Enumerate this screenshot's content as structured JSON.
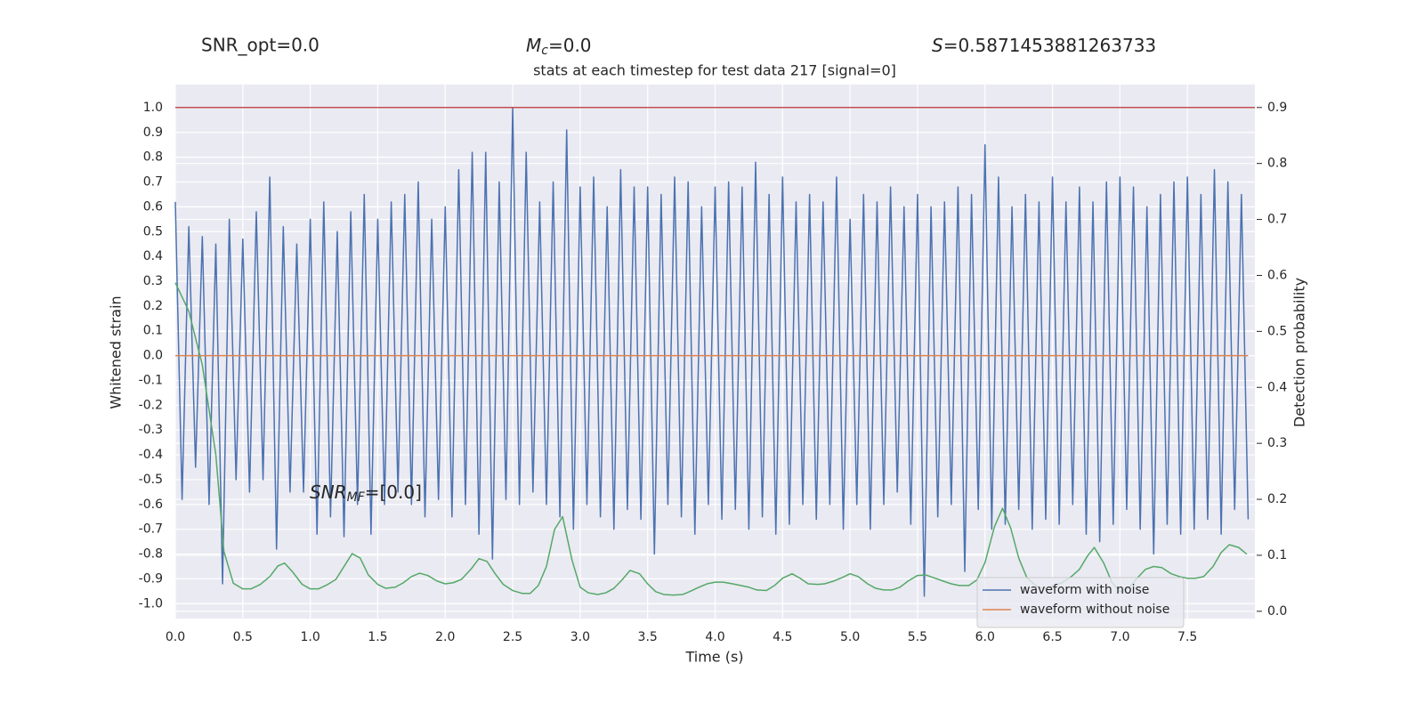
{
  "chart_data": {
    "type": "line",
    "title": "stats at each timestep for test data 217 [signal=0]",
    "header_texts": {
      "snr_opt": "SNR_opt=0.0",
      "mc": [
        "M",
        "c",
        "=0.0"
      ],
      "s": [
        "S",
        "=0.5871453881263733"
      ]
    },
    "annotation": [
      "SNR",
      "MF",
      "=[0.0]"
    ],
    "x_label": "Time (s)",
    "y_label": "Whitened strain",
    "y2_label": "Detection probability",
    "xlim": [
      0,
      8.0
    ],
    "ylim": [
      -1.06,
      1.093
    ],
    "y2lim": [
      -0.013,
      0.941
    ],
    "xticks": [
      {
        "value": 0,
        "label": "0.0"
      },
      0.5,
      {
        "value": 1,
        "label": "1.0"
      },
      1.5,
      {
        "value": 2,
        "label": "2.0"
      },
      2.5,
      {
        "value": 3,
        "label": "3.0"
      },
      3.5,
      {
        "value": 4,
        "label": "4.0"
      },
      4.5,
      {
        "value": 5,
        "label": "5.0"
      },
      5.5,
      {
        "value": 6,
        "label": "6.0"
      },
      6.5,
      {
        "value": 7,
        "label": "7.0"
      },
      7.5
    ],
    "yticks": [
      {
        "value": -1,
        "label": "-1.0"
      },
      -0.9,
      -0.8,
      -0.7,
      -0.6,
      -0.5,
      -0.4,
      -0.3,
      -0.2,
      -0.1,
      {
        "value": 0,
        "label": "0.0"
      },
      0.1,
      0.2,
      0.3,
      0.4,
      0.5,
      0.6,
      0.7,
      0.8,
      0.9,
      {
        "value": 1,
        "label": "1.0"
      }
    ],
    "y2ticks": [
      {
        "value": 0,
        "label": "0.0"
      },
      0.1,
      0.2,
      0.3,
      0.4,
      0.5,
      0.6,
      0.7,
      0.8,
      0.9
    ],
    "grid": true,
    "legend": "lower right",
    "hline": {
      "value": 0.9,
      "axis": "y2",
      "color": "#c44e52"
    },
    "series": [
      {
        "name": "waveform with noise",
        "color": "#4c72b0",
        "x": [
          0,
          0.05,
          0.1,
          0.15,
          0.2,
          0.25,
          0.3,
          0.35,
          0.4,
          0.45,
          0.5,
          0.55,
          0.6,
          0.65,
          0.7,
          0.75,
          0.8,
          0.85,
          0.9,
          0.95,
          1,
          1.05,
          1.1,
          1.15,
          1.2,
          1.25,
          1.3,
          1.35,
          1.4,
          1.45,
          1.5,
          1.55,
          1.6,
          1.65,
          1.7,
          1.75,
          1.8,
          1.85,
          1.9,
          1.95,
          2,
          2.05,
          2.1,
          2.15,
          2.2,
          2.25,
          2.3,
          2.35,
          2.4,
          2.45,
          2.5,
          2.55,
          2.6,
          2.65,
          2.7,
          2.75,
          2.8,
          2.85,
          2.9,
          2.95,
          3,
          3.05,
          3.1,
          3.15,
          3.2,
          3.25,
          3.3,
          3.35,
          3.4,
          3.45,
          3.5,
          3.55,
          3.6,
          3.65,
          3.7,
          3.75,
          3.8,
          3.85,
          3.9,
          3.95,
          4,
          4.05,
          4.1,
          4.15,
          4.2,
          4.25,
          4.3,
          4.35,
          4.4,
          4.45,
          4.5,
          4.55,
          4.6,
          4.65,
          4.7,
          4.75,
          4.8,
          4.85,
          4.9,
          4.95,
          5,
          5.05,
          5.1,
          5.15,
          5.2,
          5.25,
          5.3,
          5.35,
          5.4,
          5.45,
          5.5,
          5.55,
          5.6,
          5.65,
          5.7,
          5.75,
          5.8,
          5.85,
          5.9,
          5.95,
          6,
          6.05,
          6.1,
          6.15,
          6.2,
          6.25,
          6.3,
          6.35,
          6.4,
          6.45,
          6.5,
          6.55,
          6.6,
          6.65,
          6.7,
          6.75,
          6.8,
          6.85,
          6.9,
          6.95,
          7,
          7.05,
          7.1,
          7.15,
          7.2,
          7.25,
          7.3,
          7.35,
          7.4,
          7.45,
          7.5,
          7.55,
          7.6,
          7.65,
          7.7,
          7.75,
          7.8,
          7.85,
          7.9,
          7.95
        ],
        "values": [
          0.62,
          -0.58,
          0.52,
          -0.45,
          0.48,
          -0.6,
          0.45,
          -0.92,
          0.55,
          -0.5,
          0.47,
          -0.55,
          0.58,
          -0.5,
          0.72,
          -0.78,
          0.52,
          -0.55,
          0.45,
          -0.55,
          0.55,
          -0.72,
          0.62,
          -0.65,
          0.5,
          -0.73,
          0.58,
          -0.6,
          0.65,
          -0.72,
          0.55,
          -0.6,
          0.62,
          -0.55,
          0.65,
          -0.6,
          0.7,
          -0.65,
          0.55,
          -0.58,
          0.6,
          -0.65,
          0.75,
          -0.6,
          0.82,
          -0.72,
          0.82,
          -0.82,
          0.7,
          -0.58,
          1.0,
          -0.6,
          0.82,
          -0.55,
          0.62,
          -0.6,
          0.7,
          -0.65,
          0.91,
          -0.7,
          0.68,
          -0.6,
          0.72,
          -0.65,
          0.6,
          -0.7,
          0.75,
          -0.62,
          0.68,
          -0.66,
          0.68,
          -0.8,
          0.65,
          -0.6,
          0.72,
          -0.65,
          0.7,
          -0.72,
          0.6,
          -0.6,
          0.68,
          -0.66,
          0.7,
          -0.62,
          0.68,
          -0.7,
          0.78,
          -0.65,
          0.65,
          -0.72,
          0.72,
          -0.68,
          0.62,
          -0.6,
          0.65,
          -0.66,
          0.62,
          -0.6,
          0.72,
          -0.7,
          0.55,
          -0.6,
          0.65,
          -0.7,
          0.62,
          -0.6,
          0.68,
          -0.55,
          0.6,
          -0.68,
          0.65,
          -0.97,
          0.6,
          -0.65,
          0.62,
          -0.6,
          0.68,
          -0.87,
          0.65,
          -0.62,
          0.85,
          -0.7,
          0.72,
          -0.68,
          0.6,
          -0.62,
          0.65,
          -0.7,
          0.62,
          -0.66,
          0.72,
          -0.68,
          0.62,
          -0.6,
          0.68,
          -0.72,
          0.62,
          -0.75,
          0.7,
          -0.68,
          0.72,
          -0.62,
          0.68,
          -0.7,
          0.6,
          -0.8,
          0.65,
          -0.68,
          0.7,
          -0.72,
          0.72,
          -0.7,
          0.65,
          -0.66,
          0.75,
          -0.72,
          0.7,
          -0.62,
          0.65,
          -0.66
        ]
      },
      {
        "name": "waveform without noise",
        "color": "#dd8452",
        "x": [
          0,
          7.95
        ],
        "values": [
          0,
          0
        ]
      },
      {
        "color": "#55a868",
        "axis": "y2",
        "x": [
          0,
          0.1,
          0.2,
          0.3,
          0.36,
          0.43,
          0.5,
          0.56,
          0.63,
          0.7,
          0.76,
          0.81,
          0.87,
          0.94,
          1,
          1.06,
          1.13,
          1.19,
          1.25,
          1.31,
          1.37,
          1.43,
          1.5,
          1.56,
          1.63,
          1.69,
          1.75,
          1.81,
          1.87,
          1.94,
          2,
          2.06,
          2.12,
          2.19,
          2.25,
          2.31,
          2.37,
          2.43,
          2.5,
          2.57,
          2.63,
          2.69,
          2.75,
          2.81,
          2.87,
          2.94,
          3,
          3.06,
          3.13,
          3.19,
          3.25,
          3.31,
          3.37,
          3.44,
          3.5,
          3.56,
          3.62,
          3.69,
          3.76,
          3.81,
          3.88,
          3.94,
          4,
          4.06,
          4.13,
          4.19,
          4.25,
          4.31,
          4.38,
          4.44,
          4.5,
          4.57,
          4.63,
          4.69,
          4.76,
          4.81,
          4.88,
          4.94,
          5,
          5.06,
          5.13,
          5.19,
          5.25,
          5.31,
          5.37,
          5.43,
          5.5,
          5.56,
          5.63,
          5.69,
          5.75,
          5.81,
          5.88,
          5.94,
          6,
          6.07,
          6.13,
          6.19,
          6.25,
          6.31,
          6.38,
          6.44,
          6.5,
          6.57,
          6.64,
          6.7,
          6.76,
          6.81,
          6.88,
          6.94,
          7,
          7.07,
          7.13,
          7.19,
          7.25,
          7.31,
          7.38,
          7.44,
          7.5,
          7.56,
          7.62,
          7.69,
          7.75,
          7.81,
          7.88,
          7.94
        ],
        "values": [
          0.587,
          0.536,
          0.44,
          0.28,
          0.107,
          0.05,
          0.04,
          0.04,
          0.048,
          0.062,
          0.081,
          0.086,
          0.07,
          0.048,
          0.04,
          0.04,
          0.048,
          0.057,
          0.08,
          0.103,
          0.095,
          0.065,
          0.048,
          0.041,
          0.043,
          0.051,
          0.062,
          0.068,
          0.064,
          0.054,
          0.049,
          0.051,
          0.057,
          0.075,
          0.094,
          0.089,
          0.067,
          0.048,
          0.037,
          0.032,
          0.032,
          0.046,
          0.08,
          0.146,
          0.169,
          0.091,
          0.043,
          0.033,
          0.03,
          0.033,
          0.041,
          0.056,
          0.073,
          0.067,
          0.049,
          0.035,
          0.03,
          0.029,
          0.03,
          0.035,
          0.043,
          0.049,
          0.052,
          0.052,
          0.049,
          0.046,
          0.043,
          0.038,
          0.037,
          0.046,
          0.059,
          0.067,
          0.059,
          0.049,
          0.048,
          0.049,
          0.054,
          0.06,
          0.067,
          0.062,
          0.049,
          0.041,
          0.038,
          0.038,
          0.043,
          0.054,
          0.064,
          0.065,
          0.059,
          0.054,
          0.049,
          0.046,
          0.046,
          0.056,
          0.087,
          0.151,
          0.184,
          0.149,
          0.095,
          0.06,
          0.045,
          0.04,
          0.045,
          0.051,
          0.062,
          0.075,
          0.099,
          0.114,
          0.086,
          0.052,
          0.035,
          0.043,
          0.06,
          0.075,
          0.08,
          0.078,
          0.067,
          0.062,
          0.059,
          0.059,
          0.062,
          0.08,
          0.105,
          0.119,
          0.114,
          0.102
        ]
      }
    ]
  }
}
